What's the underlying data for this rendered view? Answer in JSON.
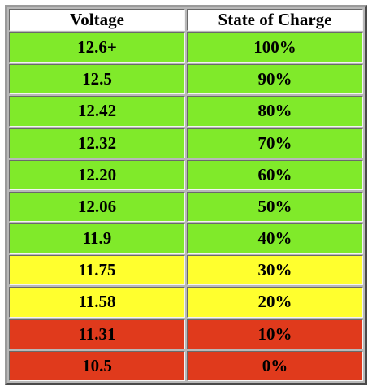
{
  "table": {
    "header": [
      "Voltage",
      "State of Charge"
    ],
    "rows": [
      [
        "12.6+",
        "100%"
      ],
      [
        "12.5",
        "90%"
      ],
      [
        "12.42",
        "80%"
      ],
      [
        "12.32",
        "70%"
      ],
      [
        "12.20",
        "60%"
      ],
      [
        "12.06",
        "50%"
      ],
      [
        "11.9",
        "40%"
      ],
      [
        "11.75",
        "30%"
      ],
      [
        "11.58",
        "20%"
      ],
      [
        "11.31",
        "10%"
      ],
      [
        "10.5",
        "0%"
      ]
    ],
    "row_colors": [
      "#80ea2a",
      "#80ea2a",
      "#80ea2a",
      "#80ea2a",
      "#80ea2a",
      "#80ea2a",
      "#80ea2a",
      "#ffff2e",
      "#ffff2e",
      "#e03a1c",
      "#e03a1c"
    ]
  }
}
